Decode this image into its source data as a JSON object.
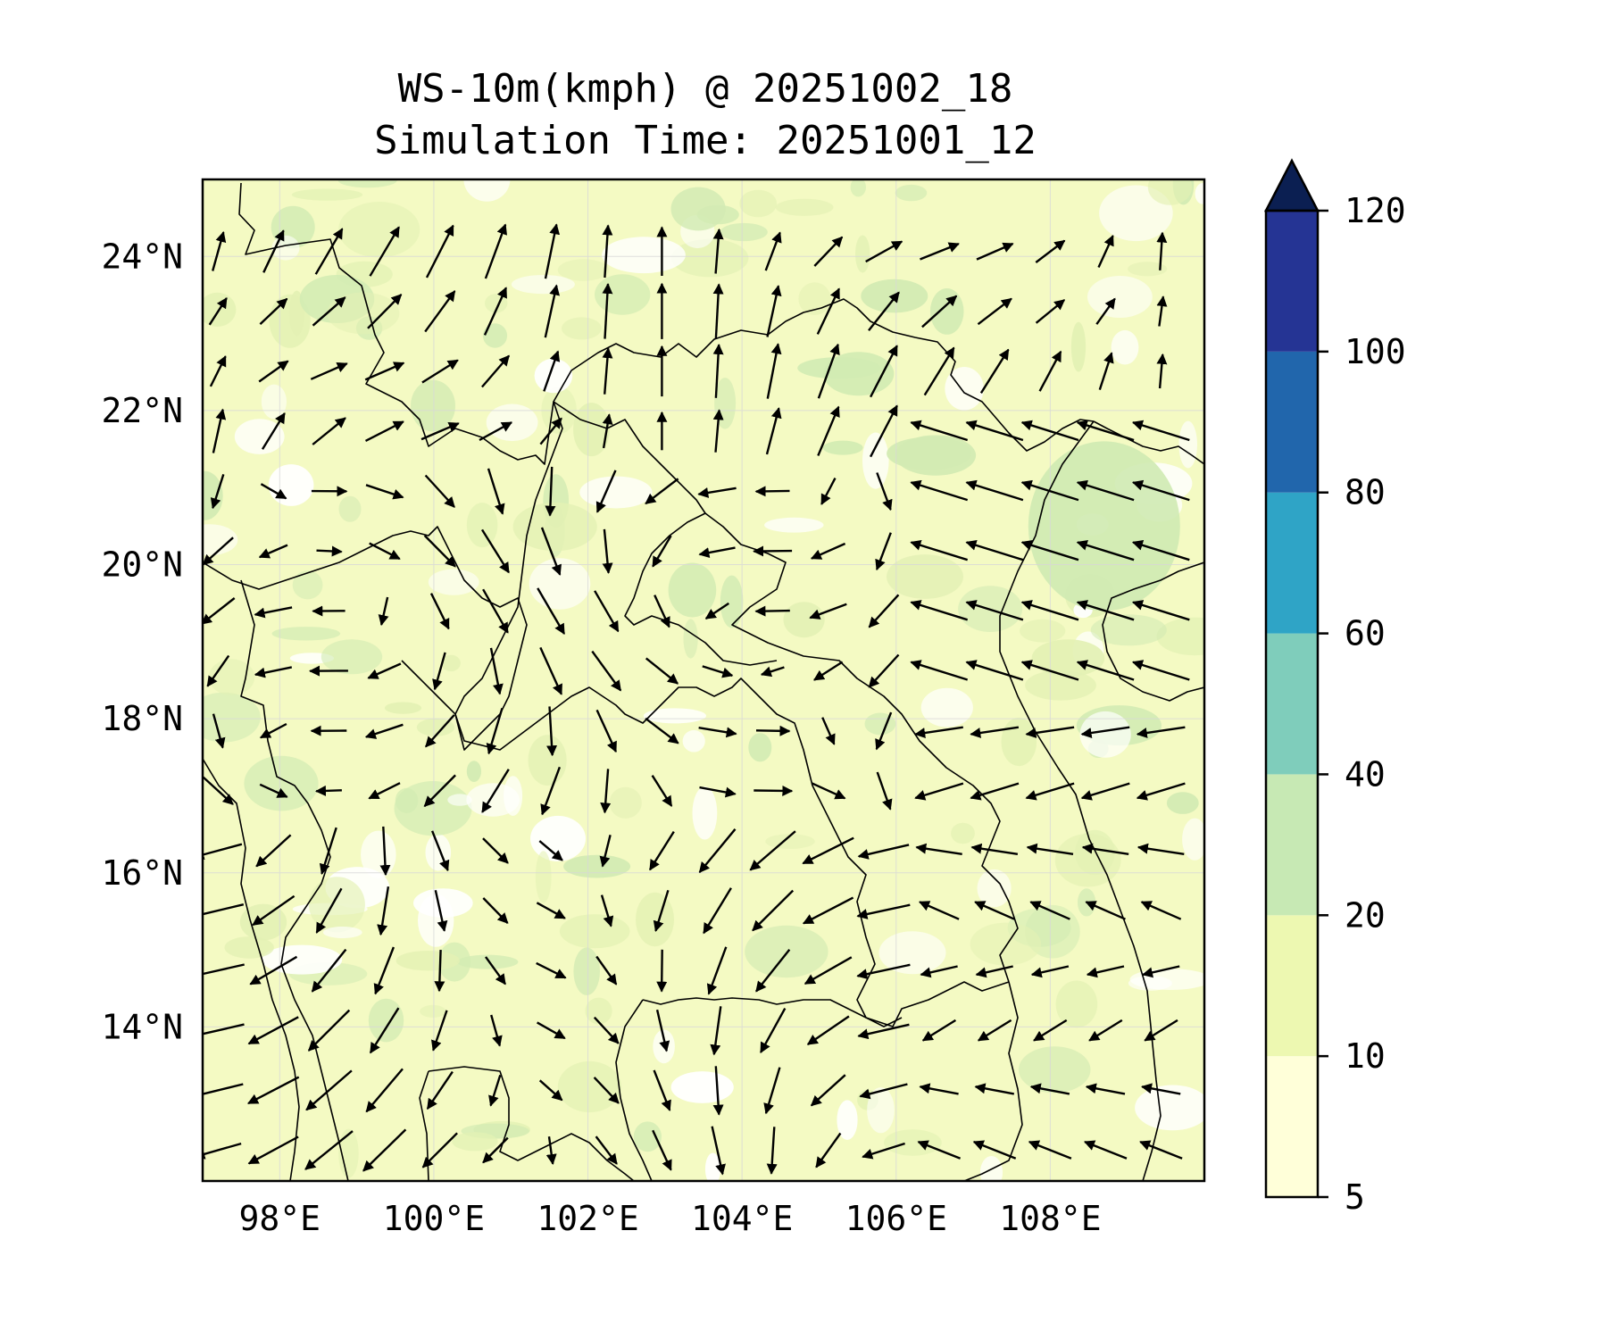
{
  "title": {
    "line1": "WS-10m(kmph) @ 20251002_18",
    "line2": "Simulation Time: 20251001_12"
  },
  "map": {
    "lon_range": [
      97,
      110
    ],
    "lat_range": [
      12,
      25
    ],
    "lon_ticks": [
      "98°E",
      "100°E",
      "102°E",
      "104°E",
      "106°E",
      "108°E"
    ],
    "lat_ticks": [
      "24°N",
      "22°N",
      "20°N",
      "18°N",
      "16°N",
      "14°N"
    ],
    "grid": true,
    "coastlines_and_borders": true
  },
  "colorbar": {
    "extend": "max",
    "labels": [
      "5",
      "10",
      "20",
      "40",
      "60",
      "80",
      "100",
      "120"
    ],
    "levels": [
      5,
      10,
      20,
      40,
      60,
      80,
      100,
      120
    ],
    "colors": [
      "#ffffd9",
      "#edf8b1",
      "#c7e9b4",
      "#7fcdbb",
      "#2fa4c6",
      "#2166ac",
      "#253494",
      "#0b1f52"
    ]
  },
  "field": {
    "base_color": "#f4fac3",
    "patch_colors": [
      "#ffffff",
      "#e3f1b4",
      "#d2ebb3"
    ]
  }
}
